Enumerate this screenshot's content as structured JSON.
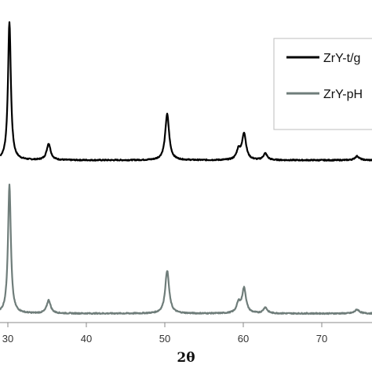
{
  "chart_data": {
    "type": "line",
    "xlabel": "2θ",
    "ylabel": "",
    "xlim": [
      29,
      77
    ],
    "x_ticks": [
      "30",
      "40",
      "50",
      "60",
      "70"
    ],
    "grid": false,
    "legend_position": "top-right",
    "series": [
      {
        "name": "ZrY-t/g",
        "color": "#000000",
        "baseline": 5.2,
        "peaks": [
          {
            "x": 30.2,
            "height": 42,
            "width": 0.22
          },
          {
            "x": 35.2,
            "height": 5,
            "width": 0.3
          },
          {
            "x": 50.3,
            "height": 14,
            "width": 0.3
          },
          {
            "x": 59.4,
            "height": 3,
            "width": 0.3
          },
          {
            "x": 60.1,
            "height": 8,
            "width": 0.3
          },
          {
            "x": 62.8,
            "height": 2,
            "width": 0.3
          },
          {
            "x": 74.5,
            "height": 1.2,
            "width": 0.35
          }
        ]
      },
      {
        "name": "ZrY-pH",
        "color": "#6f7d7a",
        "baseline": 0.6,
        "peaks": [
          {
            "x": 30.2,
            "height": 39,
            "width": 0.22
          },
          {
            "x": 35.2,
            "height": 4,
            "width": 0.3
          },
          {
            "x": 50.3,
            "height": 13,
            "width": 0.3
          },
          {
            "x": 59.4,
            "height": 3,
            "width": 0.3
          },
          {
            "x": 60.1,
            "height": 7.5,
            "width": 0.3
          },
          {
            "x": 62.8,
            "height": 1.8,
            "width": 0.3
          },
          {
            "x": 74.5,
            "height": 1.2,
            "width": 0.35
          }
        ]
      }
    ]
  }
}
